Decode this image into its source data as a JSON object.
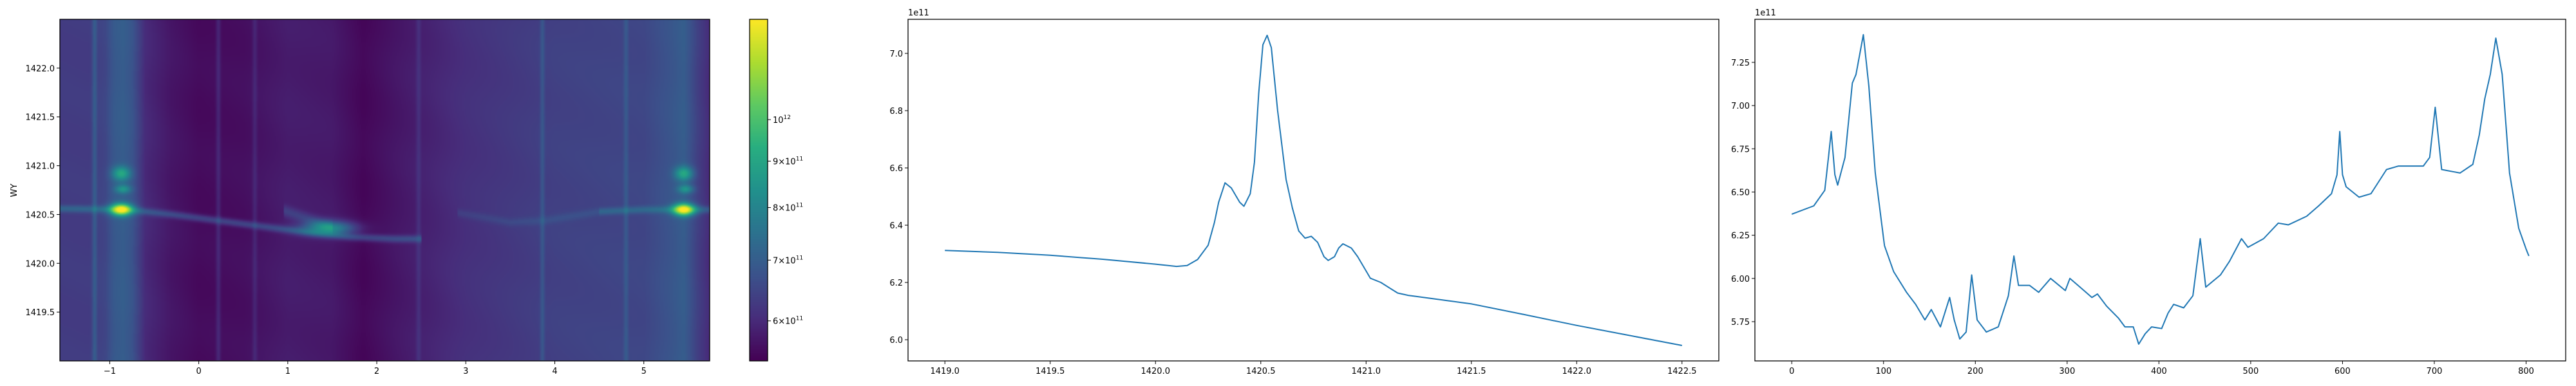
{
  "chart_data": [
    {
      "type": "heatmap",
      "ylabel": "WY",
      "xlabel": "",
      "xlim": [
        -1.56,
        5.74
      ],
      "ylim": [
        1419.0,
        1422.5
      ],
      "xticks": [
        {
          "v": -1,
          "label": "−1"
        },
        {
          "v": 0,
          "label": "0"
        },
        {
          "v": 1,
          "label": "1"
        },
        {
          "v": 2,
          "label": "2"
        },
        {
          "v": 3,
          "label": "3"
        },
        {
          "v": 4,
          "label": "4"
        },
        {
          "v": 5,
          "label": "5"
        }
      ],
      "yticks": [
        {
          "v": 1419.5,
          "label": "1419.5"
        },
        {
          "v": 1420.0,
          "label": "1420.0"
        },
        {
          "v": 1420.5,
          "label": "1420.5"
        },
        {
          "v": 1421.0,
          "label": "1421.0"
        },
        {
          "v": 1421.5,
          "label": "1421.5"
        },
        {
          "v": 1422.0,
          "label": "1422.0"
        }
      ],
      "colormap": "viridis",
      "colorbar": {
        "scale": "log",
        "zlim": [
          542000000000.0,
          1290000000000.0
        ],
        "ticks": [
          {
            "v": 600000000000.0,
            "base": "6×10",
            "exp": "11"
          },
          {
            "v": 700000000000.0,
            "base": "7×10",
            "exp": "11"
          },
          {
            "v": 800000000000.0,
            "base": "8×10",
            "exp": "11"
          },
          {
            "v": 900000000000.0,
            "base": "9×10",
            "exp": "11"
          },
          {
            "v": 1000000000000.0,
            "base": "10",
            "exp": "12"
          }
        ]
      },
      "z_unit_scale": 100000000000.0,
      "column_baseline": [
        [
          -1.56,
          6.3
        ],
        [
          -1.25,
          6.3
        ],
        [
          -1.05,
          6.5
        ],
        [
          -0.95,
          6.9
        ],
        [
          -0.85,
          7.0
        ],
        [
          -0.75,
          6.8
        ],
        [
          -0.6,
          6.0
        ],
        [
          -0.3,
          5.7
        ],
        [
          0.0,
          5.55
        ],
        [
          0.5,
          5.6
        ],
        [
          1.0,
          5.8
        ],
        [
          1.5,
          5.75
        ],
        [
          1.85,
          5.5
        ],
        [
          2.2,
          5.7
        ],
        [
          3.0,
          6.1
        ],
        [
          4.0,
          6.4
        ],
        [
          5.0,
          6.5
        ],
        [
          5.3,
          6.8
        ],
        [
          5.45,
          7.0
        ],
        [
          5.6,
          6.4
        ],
        [
          5.74,
          6.0
        ]
      ],
      "vertical_stripes": [
        [
          -1.17,
          0.6
        ],
        [
          0.22,
          0.4
        ],
        [
          0.63,
          0.3
        ],
        [
          2.47,
          0.3
        ],
        [
          3.86,
          0.5
        ],
        [
          4.8,
          0.45
        ]
      ],
      "ridges": [
        {
          "amp": 0.9,
          "sigma": 0.025,
          "path": [
            [
              -1.56,
              1420.56
            ],
            [
              -0.8,
              1420.55
            ],
            [
              -0.3,
              1420.5
            ],
            [
              0.2,
              1420.44
            ],
            [
              0.7,
              1420.38
            ],
            [
              1.2,
              1420.32
            ],
            [
              1.7,
              1420.27
            ],
            [
              2.2,
              1420.25
            ],
            [
              2.5,
              1420.25
            ]
          ]
        },
        {
          "amp": 0.6,
          "sigma": 0.04,
          "path": [
            [
              0.95,
              1420.54
            ],
            [
              1.25,
              1420.45
            ],
            [
              1.5,
              1420.37
            ]
          ]
        },
        {
          "amp": 0.3,
          "sigma": 0.03,
          "path": [
            [
              2.9,
              1420.52
            ],
            [
              3.5,
              1420.42
            ],
            [
              3.9,
              1420.44
            ],
            [
              4.5,
              1420.53
            ]
          ]
        },
        {
          "amp": 0.8,
          "sigma": 0.025,
          "path": [
            [
              4.5,
              1420.53
            ],
            [
              5.0,
              1420.55
            ],
            [
              5.74,
              1420.55
            ]
          ]
        }
      ],
      "peaks": [
        {
          "x": -0.87,
          "y": 1420.55,
          "sx": 0.08,
          "sy": 0.04,
          "amp": 6.0
        },
        {
          "x": -0.87,
          "y": 1420.92,
          "sx": 0.07,
          "sy": 0.05,
          "amp": 2.2
        },
        {
          "x": -0.85,
          "y": 1420.76,
          "sx": 0.06,
          "sy": 0.03,
          "amp": 1.6
        },
        {
          "x": 5.45,
          "y": 1420.55,
          "sx": 0.08,
          "sy": 0.04,
          "amp": 6.0
        },
        {
          "x": 5.45,
          "y": 1420.92,
          "sx": 0.07,
          "sy": 0.05,
          "amp": 2.2
        },
        {
          "x": 5.47,
          "y": 1420.76,
          "sx": 0.06,
          "sy": 0.03,
          "amp": 1.6
        },
        {
          "x": 1.45,
          "y": 1420.36,
          "sx": 0.2,
          "sy": 0.05,
          "amp": 2.6
        }
      ]
    },
    {
      "type": "line",
      "xlim": [
        1418.825,
        1422.675
      ],
      "ylim": [
        5.926,
        7.119
      ],
      "offset_text": "1e11",
      "color": "#1f77b4",
      "xticks": [
        {
          "v": 1419.0,
          "label": "1419.0"
        },
        {
          "v": 1419.5,
          "label": "1419.5"
        },
        {
          "v": 1420.0,
          "label": "1420.0"
        },
        {
          "v": 1420.5,
          "label": "1420.5"
        },
        {
          "v": 1421.0,
          "label": "1421.0"
        },
        {
          "v": 1421.5,
          "label": "1421.5"
        },
        {
          "v": 1422.0,
          "label": "1422.0"
        },
        {
          "v": 1422.5,
          "label": "1422.5"
        }
      ],
      "yticks": [
        {
          "v": 6.0,
          "label": "6.0"
        },
        {
          "v": 6.2,
          "label": "6.2"
        },
        {
          "v": 6.4,
          "label": "6.4"
        },
        {
          "v": 6.6,
          "label": "6.6"
        },
        {
          "v": 6.8,
          "label": "6.8"
        },
        {
          "v": 7.0,
          "label": "7.0"
        }
      ],
      "x": [
        1419.0,
        1419.25,
        1419.5,
        1419.75,
        1420.0,
        1420.1,
        1420.15,
        1420.2,
        1420.25,
        1420.28,
        1420.3,
        1420.33,
        1420.36,
        1420.4,
        1420.42,
        1420.45,
        1420.47,
        1420.49,
        1420.51,
        1420.53,
        1420.55,
        1420.58,
        1420.62,
        1420.65,
        1420.68,
        1420.71,
        1420.74,
        1420.77,
        1420.8,
        1420.82,
        1420.85,
        1420.87,
        1420.89,
        1420.93,
        1420.96,
        1421.0,
        1421.02,
        1421.07,
        1421.15,
        1421.2,
        1421.3,
        1421.5,
        1421.75,
        1422.0,
        1422.25,
        1422.5
      ],
      "y": [
        6.312,
        6.305,
        6.295,
        6.281,
        6.264,
        6.256,
        6.259,
        6.28,
        6.33,
        6.41,
        6.48,
        6.548,
        6.53,
        6.48,
        6.466,
        6.51,
        6.62,
        6.86,
        7.03,
        7.063,
        7.02,
        6.8,
        6.56,
        6.46,
        6.38,
        6.355,
        6.361,
        6.34,
        6.29,
        6.277,
        6.29,
        6.32,
        6.335,
        6.32,
        6.29,
        6.24,
        6.215,
        6.2,
        6.163,
        6.155,
        6.145,
        6.125,
        6.088,
        6.05,
        6.015,
        5.98
      ]
    },
    {
      "type": "line",
      "xlim": [
        -40.15,
        843.15
      ],
      "ylim": [
        5.523,
        7.499
      ],
      "offset_text": "1e11",
      "color": "#1f77b4",
      "xticks": [
        {
          "v": 0,
          "label": "0"
        },
        {
          "v": 100,
          "label": "100"
        },
        {
          "v": 200,
          "label": "200"
        },
        {
          "v": 300,
          "label": "300"
        },
        {
          "v": 400,
          "label": "400"
        },
        {
          "v": 500,
          "label": "500"
        },
        {
          "v": 600,
          "label": "600"
        },
        {
          "v": 700,
          "label": "700"
        },
        {
          "v": 800,
          "label": "800"
        }
      ],
      "yticks": [
        {
          "v": 5.75,
          "label": "5.75"
        },
        {
          "v": 6.0,
          "label": "6.00"
        },
        {
          "v": 6.25,
          "label": "6.25"
        },
        {
          "v": 6.5,
          "label": "6.50"
        },
        {
          "v": 6.75,
          "label": "6.75"
        },
        {
          "v": 7.0,
          "label": "7.00"
        },
        {
          "v": 7.25,
          "label": "7.25"
        }
      ],
      "x": [
        0,
        24,
        36,
        40,
        43,
        47,
        50,
        58,
        66,
        70,
        78,
        84,
        91,
        101,
        111,
        125,
        135,
        145,
        152,
        162,
        172,
        177,
        183,
        190,
        196,
        202,
        212,
        225,
        236,
        242,
        247,
        259,
        269,
        282,
        298,
        303,
        314,
        327,
        333,
        343,
        356,
        363,
        372,
        378,
        385,
        392,
        403,
        410,
        416,
        427,
        437,
        445,
        451,
        467,
        477,
        490,
        497,
        514,
        530,
        541,
        561,
        574,
        588,
        594,
        597,
        600,
        604,
        618,
        631,
        648,
        661,
        688,
        695,
        701,
        708,
        728,
        742,
        749,
        755,
        761,
        767,
        774,
        782,
        792,
        800,
        803
      ],
      "y": [
        6.372,
        6.42,
        6.51,
        6.7,
        6.85,
        6.6,
        6.54,
        6.7,
        7.13,
        7.18,
        7.41,
        7.11,
        6.61,
        6.19,
        6.04,
        5.92,
        5.85,
        5.76,
        5.82,
        5.72,
        5.89,
        5.76,
        5.65,
        5.69,
        6.02,
        5.76,
        5.69,
        5.72,
        5.9,
        6.13,
        5.96,
        5.96,
        5.92,
        6.0,
        5.93,
        6.0,
        5.95,
        5.89,
        5.91,
        5.84,
        5.77,
        5.72,
        5.72,
        5.62,
        5.68,
        5.72,
        5.71,
        5.8,
        5.85,
        5.83,
        5.9,
        6.23,
        5.95,
        6.02,
        6.1,
        6.23,
        6.18,
        6.23,
        6.32,
        6.31,
        6.36,
        6.42,
        6.49,
        6.6,
        6.85,
        6.6,
        6.53,
        6.47,
        6.49,
        6.63,
        6.65,
        6.65,
        6.7,
        6.99,
        6.63,
        6.61,
        6.66,
        6.83,
        7.04,
        7.18,
        7.39,
        7.18,
        6.61,
        6.29,
        6.17,
        6.13
      ]
    }
  ]
}
